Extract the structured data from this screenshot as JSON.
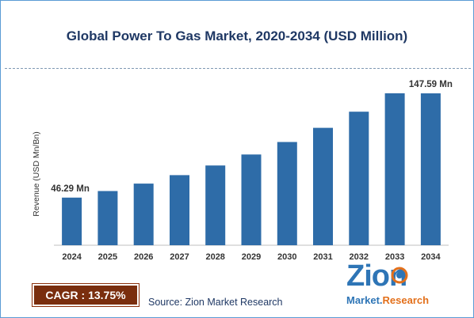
{
  "chart_data": {
    "type": "bar",
    "title": "Global Power To Gas Market, 2020-2034 (USD Million)",
    "ylabel": "Revenue (USD Mn/Bn)",
    "xlabel": "",
    "categories": [
      "2024",
      "2025",
      "2026",
      "2027",
      "2028",
      "2029",
      "2030",
      "2031",
      "2032",
      "2033",
      "2034"
    ],
    "values": [
      46.29,
      52.66,
      59.9,
      68.14,
      77.51,
      88.17,
      100.3,
      114.09,
      129.78,
      147.63,
      147.59
    ],
    "ylim": [
      0,
      160
    ],
    "bar_color": "#2e6ca8",
    "first_label": "46.29 Mn",
    "last_label": "147.59 Mn",
    "grid": false
  },
  "footer": {
    "cagr": "CAGR : 13.75%",
    "source": "Source: Zion Market Research"
  },
  "logo": {
    "main": "Zion",
    "sub_left": "Market.",
    "sub_right": "Research"
  }
}
